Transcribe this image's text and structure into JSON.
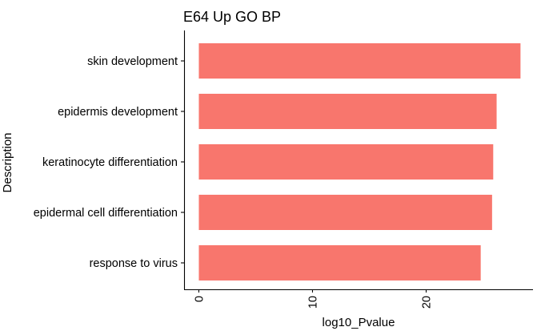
{
  "chart_data": {
    "type": "bar",
    "orientation": "horizontal",
    "title": "E64 Up GO BP",
    "xlabel": "log10_Pvalue",
    "ylabel": "Description",
    "categories": [
      "skin development",
      "epidermis development",
      "keratinocyte differentiation",
      "epidermal cell differentiation",
      "response to virus"
    ],
    "values": [
      28.3,
      26.2,
      25.9,
      25.8,
      24.8
    ],
    "xlim": [
      -1.3,
      29.4
    ],
    "xticks": [
      0,
      10,
      20
    ],
    "grid": false,
    "bar_color": "#F8766D"
  }
}
